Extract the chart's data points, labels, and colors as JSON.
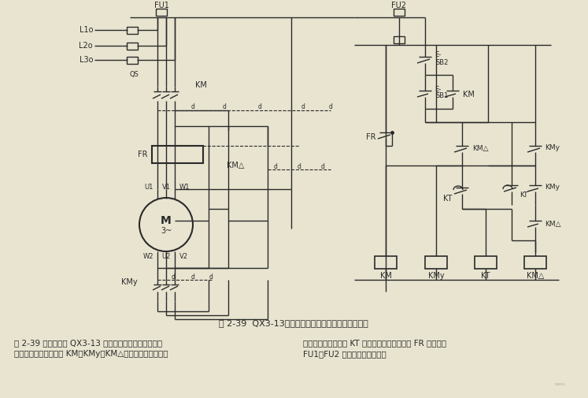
{
  "title": "图 2-39  QX3-13型星三角形降压自动起动器控制线路",
  "bg_color": "#e8e4d0",
  "line_color": "#2a2a2a",
  "caption_line1": "图 2-39 所示为采用 QX3-13 型星三角降压自动起动器控",
  "caption_line2": "制线路。该线路主要由 KM、KMy、KM△三个接触器，一个通",
  "caption_line3": "电延时型时间继电器 KT 和按钮组成，热继电器 FR 和熔断器",
  "caption_line4": "FU1、FU2 作过载与短路保护。"
}
